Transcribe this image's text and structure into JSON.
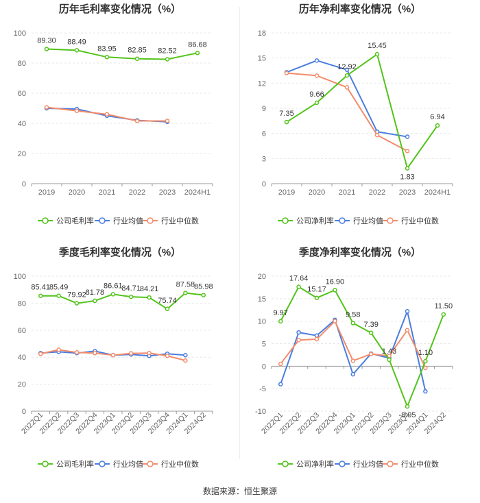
{
  "charts": [
    {
      "type": "line",
      "title": "历年毛利率变化情况（%）",
      "categories": [
        "2019",
        "2020",
        "2021",
        "2022",
        "2023",
        "2024H1"
      ],
      "ylim": [
        0,
        100
      ],
      "yticks": [
        0,
        20,
        40,
        60,
        80,
        100
      ],
      "rotate_x": false,
      "series": [
        {
          "name": "公司毛利率",
          "color": "#52c41a",
          "values": [
            89.3,
            88.49,
            83.95,
            82.85,
            82.52,
            86.68
          ],
          "labels": [
            "89.30",
            "88.49",
            "83.95",
            "82.85",
            "82.52",
            "86.68"
          ]
        },
        {
          "name": "行业均值",
          "color": "#4a7de0",
          "values": [
            50.0,
            49.5,
            45.0,
            42.0,
            41.0,
            null
          ]
        },
        {
          "name": "行业中位数",
          "color": "#f28c6a",
          "values": [
            50.6,
            48.3,
            46.0,
            41.6,
            41.6,
            null
          ]
        }
      ]
    },
    {
      "type": "line",
      "title": "历年净利率变化情况（%）",
      "categories": [
        "2019",
        "2020",
        "2021",
        "2022",
        "2023",
        "2024H1"
      ],
      "ylim": [
        0,
        18
      ],
      "yticks": [
        0,
        3,
        6,
        9,
        12,
        15,
        18
      ],
      "rotate_x": false,
      "series": [
        {
          "name": "公司净利率",
          "color": "#52c41a",
          "values": [
            7.35,
            9.66,
            12.92,
            15.45,
            1.83,
            6.94
          ],
          "labels": [
            "7.35",
            "9.66",
            "12.92",
            "15.45",
            "1.83",
            "6.94"
          ]
        },
        {
          "name": "行业均值",
          "color": "#4a7de0",
          "values": [
            13.3,
            14.7,
            13.6,
            6.2,
            5.6,
            null
          ]
        },
        {
          "name": "行业中位数",
          "color": "#f28c6a",
          "values": [
            13.2,
            12.9,
            11.5,
            5.8,
            3.9,
            null
          ]
        }
      ]
    },
    {
      "type": "line",
      "title": "季度毛利率变化情况（%）",
      "categories": [
        "2022Q1",
        "2022Q2",
        "2022Q3",
        "2022Q4",
        "2023Q1",
        "2023Q2",
        "2023Q3",
        "2023Q4",
        "2024Q1",
        "2024Q2"
      ],
      "ylim": [
        0,
        100
      ],
      "yticks": [
        0,
        20,
        40,
        60,
        80,
        100
      ],
      "rotate_x": true,
      "series": [
        {
          "name": "公司毛利率",
          "color": "#52c41a",
          "values": [
            85.41,
            85.49,
            79.92,
            81.78,
            86.61,
            84.71,
            84.21,
            75.74,
            87.58,
            85.98
          ],
          "labels": [
            "85.41",
            "85.49",
            "79.92",
            "81.78",
            "86.61",
            "84.71",
            "84.21",
            "75.74",
            "87.58",
            "85.98"
          ]
        },
        {
          "name": "行业均值",
          "color": "#4a7de0",
          "values": [
            43.0,
            44.0,
            43.0,
            44.5,
            41.5,
            42.0,
            41.0,
            42.5,
            41.5,
            null
          ]
        },
        {
          "name": "行业中位数",
          "color": "#f28c6a",
          "values": [
            42.5,
            45.5,
            43.5,
            43.0,
            41.5,
            42.8,
            43.0,
            41.0,
            37.5,
            null
          ]
        }
      ]
    },
    {
      "type": "line",
      "title": "季度净利率变化情况（%）",
      "categories": [
        "2022Q1",
        "2022Q2",
        "2022Q3",
        "2022Q4",
        "2023Q1",
        "2023Q2",
        "2023Q3",
        "2023Q4",
        "2024Q1",
        "2024Q2"
      ],
      "ylim": [
        -10,
        20
      ],
      "yticks": [
        -10,
        -5,
        0,
        5,
        10,
        15,
        20
      ],
      "rotate_x": true,
      "series": [
        {
          "name": "公司净利率",
          "color": "#52c41a",
          "values": [
            9.97,
            17.64,
            15.17,
            16.9,
            9.58,
            7.39,
            1.43,
            -8.95,
            1.1,
            11.5
          ],
          "labels": [
            "9.97",
            "17.64",
            "15.17",
            "16.90",
            "9.58",
            "7.39",
            "1.43",
            "-8.95",
            "1.10",
            "11.50"
          ]
        },
        {
          "name": "行业均值",
          "color": "#4a7de0",
          "values": [
            -4.0,
            7.5,
            6.8,
            10.3,
            -1.8,
            2.8,
            1.8,
            12.2,
            -5.6,
            null
          ]
        },
        {
          "name": "行业中位数",
          "color": "#f28c6a",
          "values": [
            0.5,
            5.8,
            6.0,
            10.0,
            1.2,
            2.7,
            2.3,
            8.0,
            -0.4,
            null
          ]
        }
      ]
    }
  ],
  "source": "数据来源：恒生聚源"
}
